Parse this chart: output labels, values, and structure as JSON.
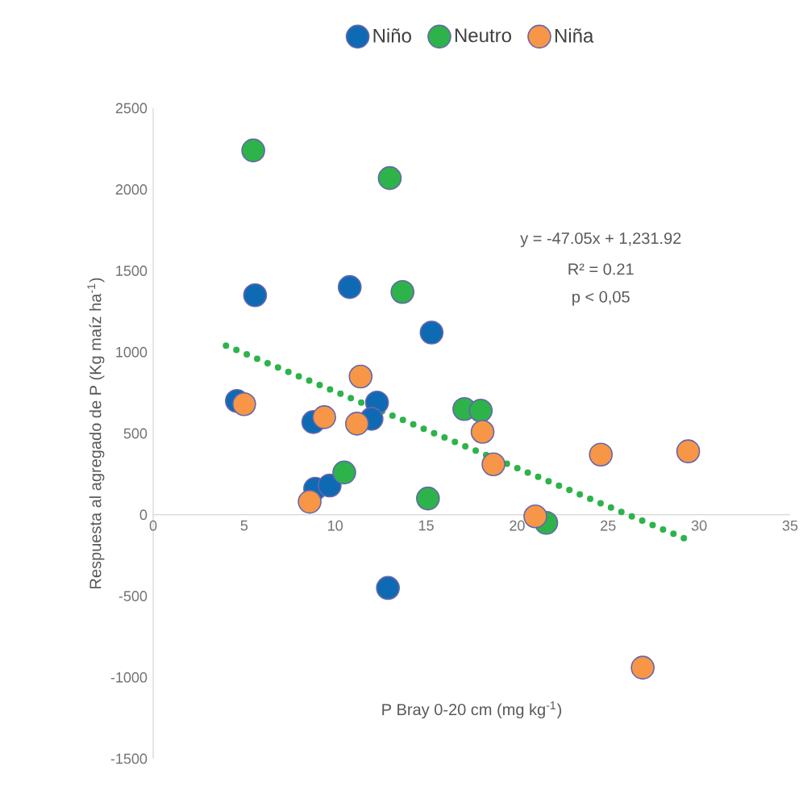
{
  "chart_data": {
    "type": "scatter",
    "xlabel": "P Bray 0-20 cm (mg kg$^{-1}$)",
    "ylabel": "Respuesta al agregado de P (Kg maíz ha$^{-1}$)",
    "xlim": [
      0,
      35
    ],
    "xticks": [
      0,
      5,
      10,
      15,
      20,
      25,
      30,
      35
    ],
    "ylim": [
      -1500,
      2500
    ],
    "yticks": [
      -1500,
      -1000,
      -500,
      0,
      500,
      1000,
      1500,
      2000,
      2500
    ],
    "grid": false,
    "legend": "top",
    "annotations": [
      "y = -47.05x + 1,231.92",
      "R² = 0.21",
      "p < 0,05"
    ],
    "series": [
      {
        "name": "Niño",
        "color": "#0f6ab4",
        "marker": "circle",
        "x": [
          5.6,
          10.8,
          15.3,
          4.6,
          8.8,
          12.3,
          12.0,
          8.9,
          9.7,
          12.9
        ],
        "values": [
          1350,
          1400,
          1120,
          700,
          570,
          690,
          590,
          160,
          180,
          -450
        ]
      },
      {
        "name": "Neutro",
        "color": "#2db34a",
        "marker": "circle",
        "x": [
          5.5,
          13.0,
          13.7,
          10.5,
          15.1,
          17.1,
          18.0,
          21.6
        ],
        "values": [
          2240,
          2070,
          1370,
          260,
          100,
          650,
          640,
          -50
        ]
      },
      {
        "name": "Niña",
        "color": "#f79646",
        "marker": "circle",
        "x": [
          5.0,
          8.6,
          9.4,
          11.2,
          11.4,
          18.1,
          18.7,
          21.0,
          24.6,
          29.4,
          26.9
        ],
        "values": [
          680,
          80,
          600,
          560,
          850,
          510,
          310,
          -10,
          370,
          390,
          -940
        ]
      },
      {
        "type": "line",
        "color": "#2db34a",
        "line_style": "dotted",
        "marker": "none",
        "x": [
          4,
          29.5
        ],
        "values": [
          1040,
          -160
        ]
      }
    ]
  }
}
